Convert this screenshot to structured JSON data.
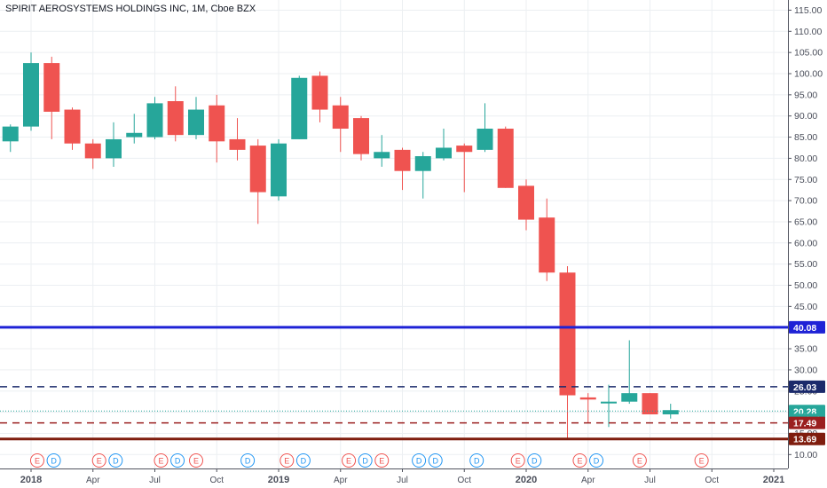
{
  "chart_data": {
    "type": "candlestick",
    "title": "SPIRIT AEROSYSTEMS HOLDINGS INC, 1M, Cboe BZX",
    "ylim": [
      6.5,
      117
    ],
    "grid": true,
    "y_ticks": [
      10,
      15,
      20,
      25,
      30,
      35,
      40,
      45,
      50,
      55,
      60,
      65,
      70,
      75,
      80,
      85,
      90,
      95,
      100,
      105,
      110,
      115
    ],
    "y_tick_suffix": ".00",
    "x_tick_labels": [
      {
        "label": "2018",
        "t": 0,
        "bold": true
      },
      {
        "label": "Apr",
        "t": 3
      },
      {
        "label": "Jul",
        "t": 6
      },
      {
        "label": "Oct",
        "t": 9
      },
      {
        "label": "2019",
        "t": 12,
        "bold": true
      },
      {
        "label": "Apr",
        "t": 15
      },
      {
        "label": "Jul",
        "t": 18
      },
      {
        "label": "Oct",
        "t": 21
      },
      {
        "label": "2020",
        "t": 24,
        "bold": true
      },
      {
        "label": "Apr",
        "t": 27
      },
      {
        "label": "Jul",
        "t": 30
      },
      {
        "label": "Oct",
        "t": 33
      },
      {
        "label": "2021",
        "t": 36,
        "bold": true
      }
    ],
    "candles": [
      {
        "t": -1,
        "o": 84,
        "h": 88,
        "l": 81.5,
        "c": 87.5
      },
      {
        "t": 0,
        "o": 87.5,
        "h": 105,
        "l": 86.5,
        "c": 102.5
      },
      {
        "t": 1,
        "o": 102.5,
        "h": 104,
        "l": 84.5,
        "c": 91
      },
      {
        "t": 2,
        "o": 91.5,
        "h": 92,
        "l": 82,
        "c": 83.5
      },
      {
        "t": 3,
        "o": 83.5,
        "h": 84.5,
        "l": 77.5,
        "c": 80
      },
      {
        "t": 4,
        "o": 80,
        "h": 88.5,
        "l": 78,
        "c": 84.5
      },
      {
        "t": 5,
        "o": 85,
        "h": 90.5,
        "l": 83.5,
        "c": 86
      },
      {
        "t": 6,
        "o": 85,
        "h": 94.5,
        "l": 84.5,
        "c": 93
      },
      {
        "t": 7,
        "o": 93.5,
        "h": 97,
        "l": 84,
        "c": 85.5
      },
      {
        "t": 8,
        "o": 85.5,
        "h": 94.5,
        "l": 84.5,
        "c": 91.5
      },
      {
        "t": 9,
        "o": 92.5,
        "h": 95,
        "l": 79,
        "c": 84
      },
      {
        "t": 10,
        "o": 84.5,
        "h": 89.5,
        "l": 79.5,
        "c": 82
      },
      {
        "t": 11,
        "o": 83,
        "h": 84.5,
        "l": 64.5,
        "c": 72
      },
      {
        "t": 12,
        "o": 71,
        "h": 84.5,
        "l": 70,
        "c": 83.5
      },
      {
        "t": 13,
        "o": 84.5,
        "h": 99.5,
        "l": 84.5,
        "c": 99
      },
      {
        "t": 14,
        "o": 99.5,
        "h": 100.5,
        "l": 88.5,
        "c": 91.5
      },
      {
        "t": 15,
        "o": 92.5,
        "h": 94.5,
        "l": 81.5,
        "c": 87
      },
      {
        "t": 16,
        "o": 89.5,
        "h": 90,
        "l": 79.5,
        "c": 81
      },
      {
        "t": 17,
        "o": 80,
        "h": 85.5,
        "l": 78,
        "c": 81.5
      },
      {
        "t": 18,
        "o": 82,
        "h": 82.5,
        "l": 72.5,
        "c": 77
      },
      {
        "t": 19,
        "o": 77,
        "h": 81.5,
        "l": 70.5,
        "c": 80.5
      },
      {
        "t": 20,
        "o": 80,
        "h": 87,
        "l": 79.5,
        "c": 82.5
      },
      {
        "t": 21,
        "o": 83,
        "h": 83.5,
        "l": 72,
        "c": 81.5
      },
      {
        "t": 22,
        "o": 82,
        "h": 93,
        "l": 81.5,
        "c": 87
      },
      {
        "t": 23,
        "o": 87,
        "h": 87.5,
        "l": 73,
        "c": 73
      },
      {
        "t": 24,
        "o": 73.5,
        "h": 75,
        "l": 63,
        "c": 65.5
      },
      {
        "t": 25,
        "o": 66,
        "h": 70.5,
        "l": 51,
        "c": 53
      },
      {
        "t": 26,
        "o": 53,
        "h": 54.5,
        "l": 13.69,
        "c": 24
      },
      {
        "t": 27,
        "o": 23.5,
        "h": 24.5,
        "l": 17.5,
        "c": 23
      },
      {
        "t": 28,
        "o": 22.5,
        "h": 26.5,
        "l": 16.5,
        "c": 22.5
      },
      {
        "t": 29,
        "o": 22.5,
        "h": 37,
        "l": 22,
        "c": 24.5
      },
      {
        "t": 30,
        "o": 24.5,
        "h": 24.5,
        "l": 19.5,
        "c": 19.5
      },
      {
        "t": 31,
        "o": 19.5,
        "h": 22,
        "l": 18.5,
        "c": 20.5
      }
    ],
    "colors": {
      "up": "#26a69a",
      "down": "#ef5350",
      "grid": "#eceff2",
      "axis_text": "#4a4e5a"
    },
    "horizontal_lines": [
      {
        "value": 40.08,
        "label": "40.08",
        "color": "#1e22d6",
        "style": "solid",
        "width": 3
      },
      {
        "value": 26.03,
        "label": "26.03",
        "color": "#1b2a6b",
        "style": "dashed",
        "width": 1.5
      },
      {
        "value": 20.28,
        "label": "20.28",
        "color": "#26a69a",
        "style": "dotted",
        "width": 1
      },
      {
        "value": 18.2,
        "label": "24d 6h",
        "color": "#26a69a",
        "style": "none",
        "width": 0
      },
      {
        "value": 17.49,
        "label": "17.49",
        "color": "#9b2020",
        "style": "dashed",
        "width": 1.5
      },
      {
        "value": 13.69,
        "label": "13.69",
        "color": "#7f1d0e",
        "style": "solid",
        "width": 3
      }
    ],
    "events": [
      {
        "t": 0.3,
        "type": "E"
      },
      {
        "t": 1.1,
        "type": "D"
      },
      {
        "t": 3.3,
        "type": "E"
      },
      {
        "t": 4.1,
        "type": "D"
      },
      {
        "t": 6.3,
        "type": "E"
      },
      {
        "t": 7.1,
        "type": "D"
      },
      {
        "t": 8.0,
        "type": "E"
      },
      {
        "t": 10.5,
        "type": "D"
      },
      {
        "t": 12.4,
        "type": "E"
      },
      {
        "t": 13.2,
        "type": "D"
      },
      {
        "t": 15.4,
        "type": "E"
      },
      {
        "t": 16.2,
        "type": "D"
      },
      {
        "t": 17.0,
        "type": "E"
      },
      {
        "t": 18.8,
        "type": "D"
      },
      {
        "t": 19.6,
        "type": "D"
      },
      {
        "t": 21.6,
        "type": "D"
      },
      {
        "t": 23.6,
        "type": "E"
      },
      {
        "t": 24.4,
        "type": "D"
      },
      {
        "t": 26.6,
        "type": "E"
      },
      {
        "t": 27.4,
        "type": "D"
      },
      {
        "t": 29.5,
        "type": "E"
      },
      {
        "t": 32.5,
        "type": "E"
      }
    ]
  }
}
